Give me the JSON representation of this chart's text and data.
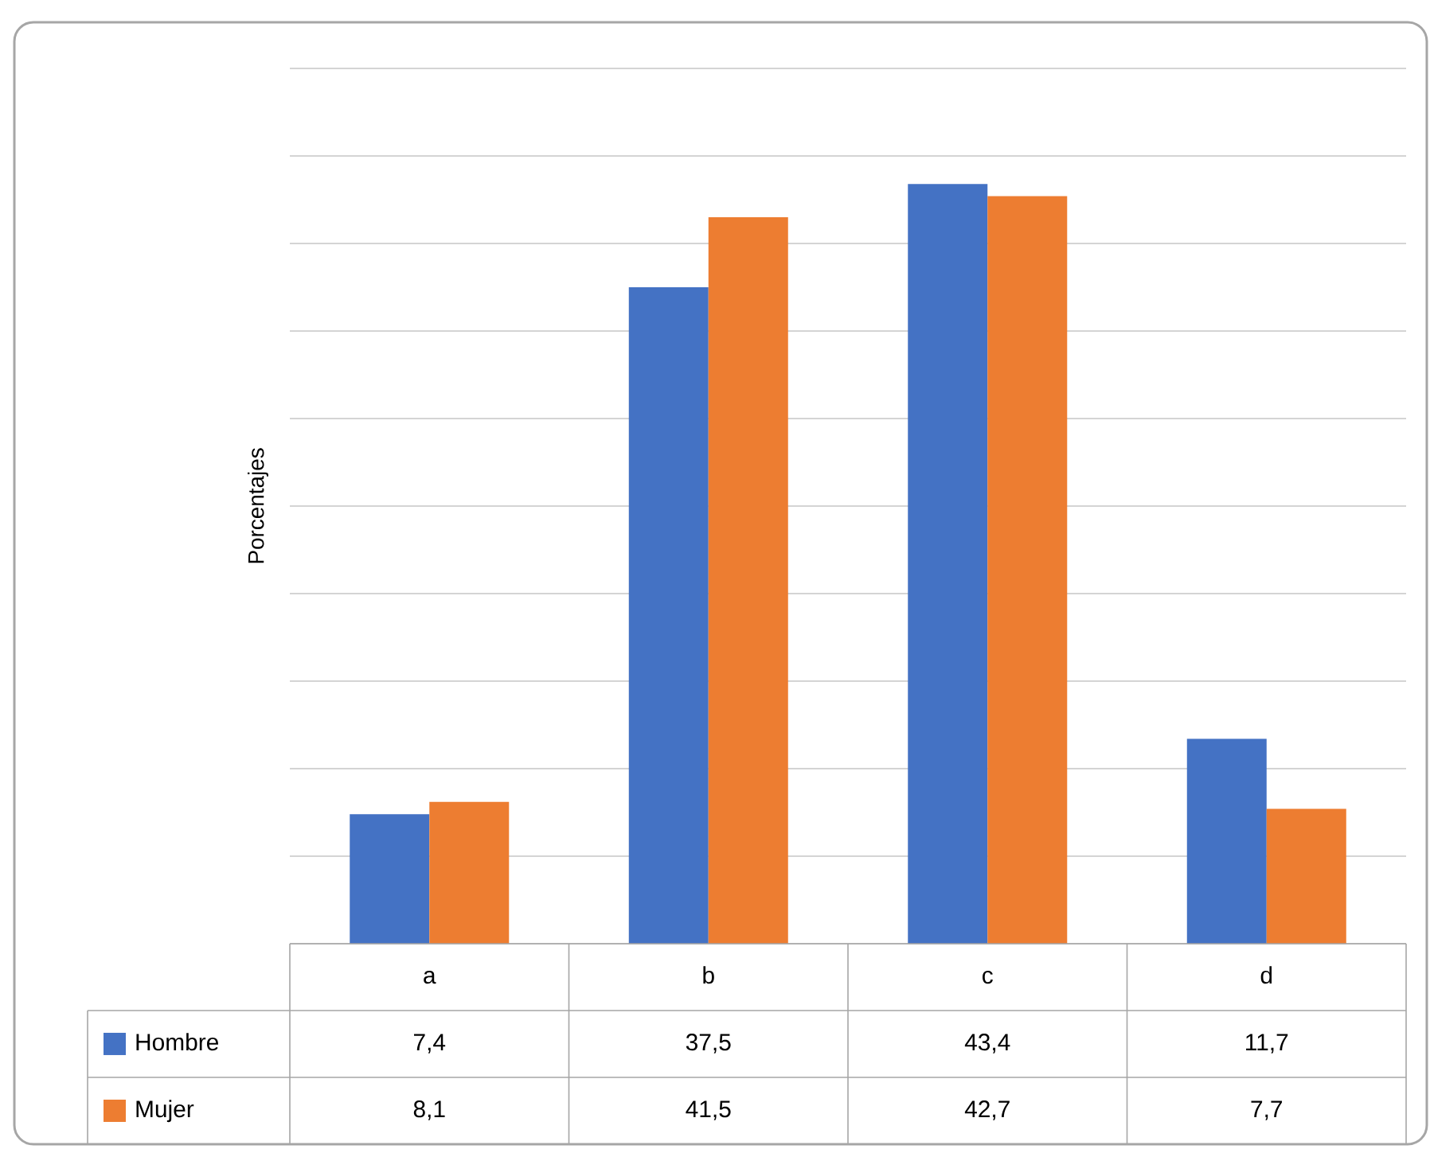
{
  "chart_data": {
    "type": "bar",
    "ylabel": "Porcentajes",
    "categories": [
      "a",
      "b",
      "c",
      "d"
    ],
    "series": [
      {
        "name": "Hombre",
        "color": "#4472c4",
        "values": [
          7.4,
          37.5,
          43.4,
          11.7
        ],
        "value_labels": [
          "7,4",
          "37,5",
          "43,4",
          "11,7"
        ]
      },
      {
        "name": "Mujer",
        "color": "#ed7d31",
        "values": [
          8.1,
          41.5,
          42.7,
          7.7
        ],
        "value_labels": [
          "8,1",
          "41,5",
          "42,7",
          "7,7"
        ]
      }
    ],
    "ylim": [
      0,
      50
    ],
    "grid": true,
    "legend": "bottom",
    "tick_labels": "x"
  }
}
